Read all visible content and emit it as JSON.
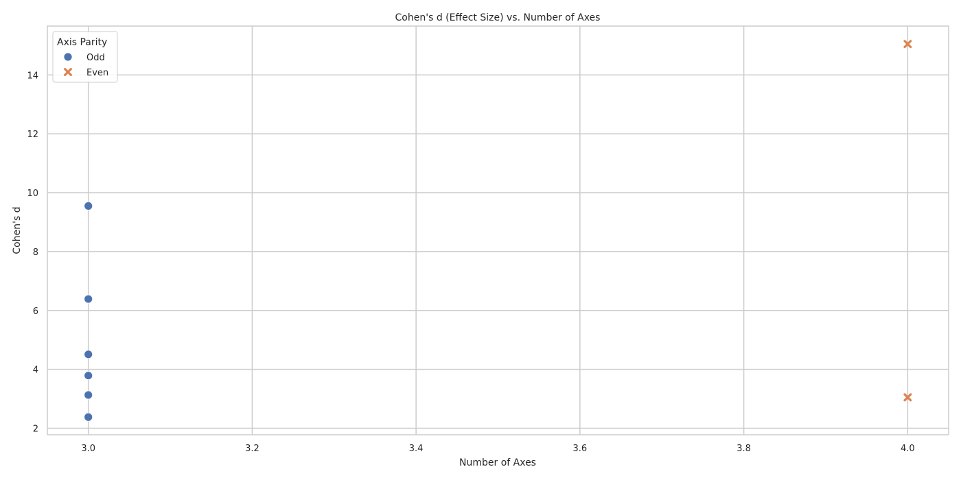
{
  "chart_data": {
    "type": "scatter",
    "title": "Cohen's d (Effect Size) vs. Number of Axes",
    "xlabel": "Number of Axes",
    "ylabel": "Cohen's d",
    "xlim": [
      2.95,
      4.05
    ],
    "ylim": [
      1.78,
      15.66
    ],
    "xticks": [
      "3.0",
      "3.2",
      "3.4",
      "3.6",
      "3.8",
      "4.0"
    ],
    "yticks": [
      "2",
      "4",
      "6",
      "8",
      "10",
      "12",
      "14"
    ],
    "grid": true,
    "legend": {
      "title": "Axis Parity",
      "placement": "top-left"
    },
    "series": [
      {
        "name": "Odd",
        "marker": "circle",
        "color": "#4c72b0",
        "points": [
          {
            "x": 3.0,
            "y": 9.55
          },
          {
            "x": 3.0,
            "y": 6.39
          },
          {
            "x": 3.0,
            "y": 4.51
          },
          {
            "x": 3.0,
            "y": 3.79
          },
          {
            "x": 3.0,
            "y": 3.13
          },
          {
            "x": 3.0,
            "y": 2.38
          }
        ]
      },
      {
        "name": "Even",
        "marker": "x",
        "color": "#dd8452",
        "points": [
          {
            "x": 4.0,
            "y": 15.05
          },
          {
            "x": 4.0,
            "y": 3.05
          }
        ]
      }
    ]
  },
  "style": {
    "background": "#ffffff",
    "grid_color": "#cccccc",
    "spine_color": "#cccccc",
    "text_color": "#262626"
  }
}
